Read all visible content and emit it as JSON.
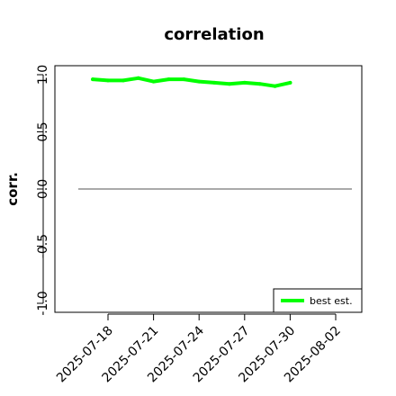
{
  "chart_data": {
    "type": "line",
    "title": "correlation",
    "xlabel": "",
    "ylabel": "corr.",
    "ylim": [
      -1.0,
      1.0
    ],
    "y_ticks": [
      "-1.0",
      "-0.5",
      "0.0",
      "0.5",
      "1.0"
    ],
    "x_ticks": [
      "2025-07-18",
      "2025-07-21",
      "2025-07-24",
      "2025-07-27",
      "2025-07-30",
      "2025-08-02"
    ],
    "highlight_tick": "2025-07-24",
    "highlight_color": "#228B22",
    "grid": false,
    "reference_line": 0.0,
    "series": [
      {
        "name": "best est.",
        "color": "#00ff00",
        "x": [
          "2025-07-17",
          "2025-07-18",
          "2025-07-19",
          "2025-07-20",
          "2025-07-21",
          "2025-07-22",
          "2025-07-23",
          "2025-07-24",
          "2025-07-25",
          "2025-07-26",
          "2025-07-27",
          "2025-07-28",
          "2025-07-29",
          "2025-07-30"
        ],
        "y": [
          0.96,
          0.95,
          0.95,
          0.97,
          0.94,
          0.96,
          0.96,
          0.94,
          0.93,
          0.92,
          0.93,
          0.92,
          0.9,
          0.93
        ]
      }
    ],
    "legend": {
      "position": "bottom-right",
      "entries": [
        "best est."
      ]
    }
  }
}
